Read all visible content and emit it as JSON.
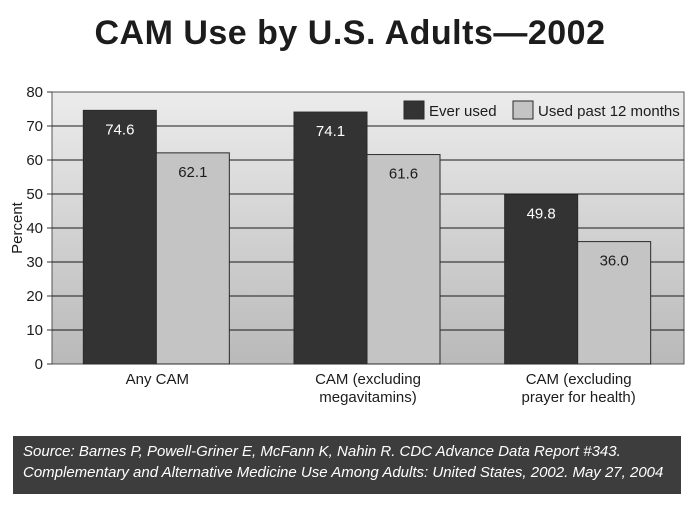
{
  "chart_data": {
    "type": "bar",
    "title": "CAM Use by U.S. Adults—2002",
    "ylabel": "Percent",
    "xlabel": "",
    "ylim": [
      0,
      80
    ],
    "yticks": [
      "0",
      "10",
      "20",
      "30",
      "40",
      "50",
      "60",
      "70",
      "80"
    ],
    "categories": [
      [
        "Any CAM"
      ],
      [
        "CAM (excluding",
        "megavitamins)"
      ],
      [
        "CAM (excluding",
        "prayer for health)"
      ]
    ],
    "series": [
      {
        "name": "Ever used",
        "values": [
          74.6,
          74.1,
          49.8
        ],
        "labels": [
          "74.6",
          "74.1",
          "49.8"
        ],
        "color": "#333333",
        "label_color": "#ffffff"
      },
      {
        "name": "Used past 12 months",
        "values": [
          62.1,
          61.6,
          36.0
        ],
        "labels": [
          "62.1",
          "61.6",
          "36.0"
        ],
        "color": "#c4c4c4",
        "label_color": "#1c1c1c"
      }
    ],
    "grid": true,
    "legend": "top-right"
  },
  "source": {
    "line1": "Source: Barnes P, Powell-Griner E, McFann K, Nahin R. CDC Advance Data Report #343.",
    "line2": "Complementary and Alternative Medicine Use Among Adults: United States, 2002. May 27, 2004"
  },
  "colors": {
    "plot_top": "#ececec",
    "plot_bottom": "#b9b9b9",
    "source_bg": "#3d3d3d"
  }
}
